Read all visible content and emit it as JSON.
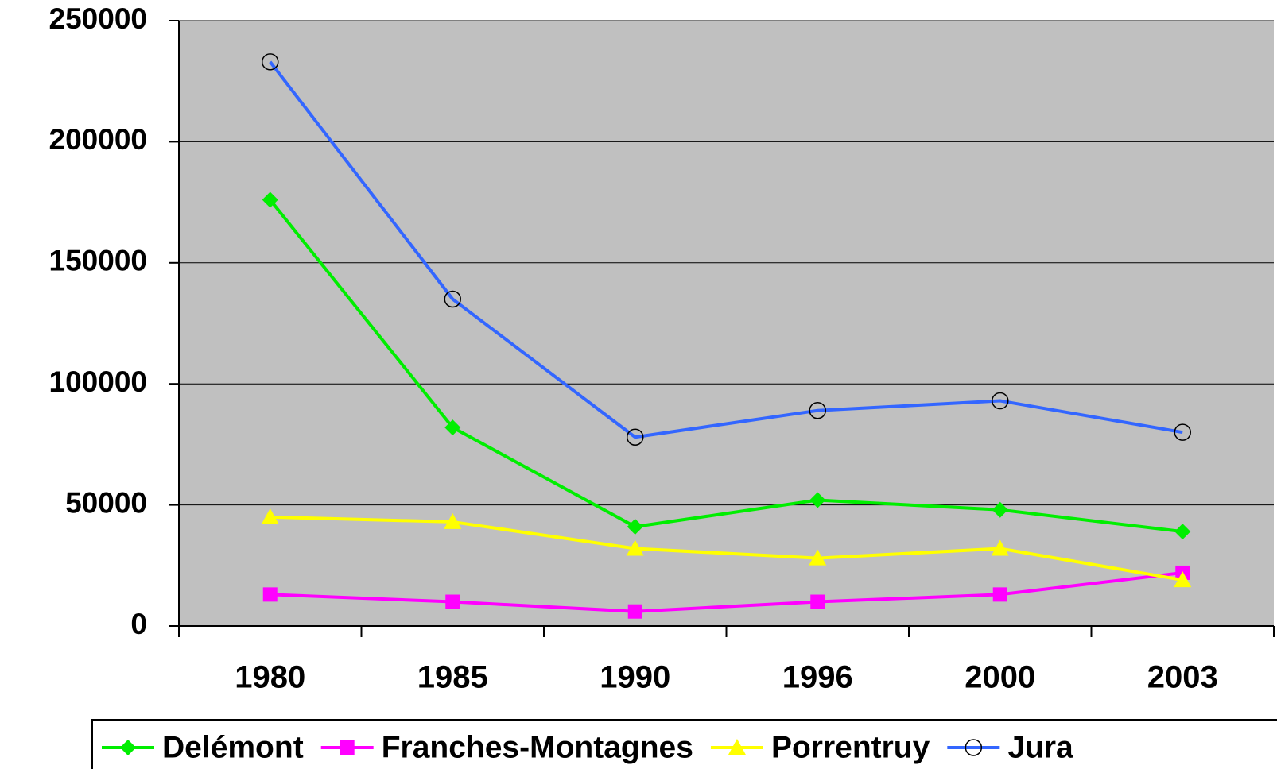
{
  "chart_data": {
    "type": "line",
    "categories": [
      "1980",
      "1985",
      "1990",
      "1996",
      "2000",
      "2003"
    ],
    "series": [
      {
        "name": "Delémont",
        "color": "#00ee00",
        "marker": "diamond",
        "values": [
          176000,
          82000,
          41000,
          52000,
          48000,
          39000
        ]
      },
      {
        "name": "Franches-Montagnes",
        "color": "#ff00ff",
        "marker": "square",
        "values": [
          13000,
          10000,
          6000,
          10000,
          13000,
          22000
        ]
      },
      {
        "name": "Porrentruy",
        "color": "#ffff00",
        "marker": "triangle",
        "values": [
          45000,
          43000,
          32000,
          28000,
          32000,
          19000
        ]
      },
      {
        "name": "Jura",
        "color": "#3366ff",
        "marker": "circle",
        "values": [
          233000,
          135000,
          78000,
          89000,
          93000,
          80000
        ]
      }
    ],
    "ylim": [
      0,
      250000
    ],
    "yticks": [
      0,
      50000,
      100000,
      150000,
      200000,
      250000
    ],
    "grid": true,
    "plot_background": "#c0c0c0",
    "legend": "bottom"
  }
}
